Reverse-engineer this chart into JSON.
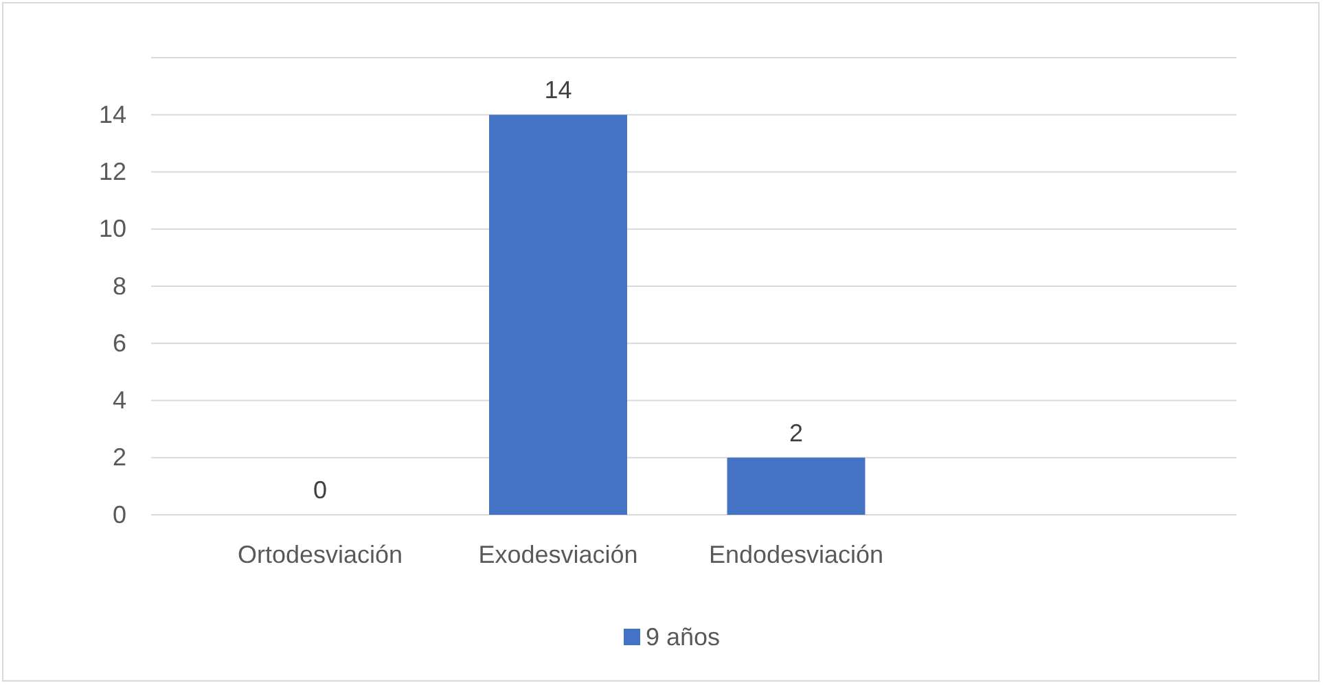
{
  "chart_data": {
    "type": "bar",
    "categories": [
      "Ortodesviación",
      "Exodesviación",
      "Endodesviación"
    ],
    "series": [
      {
        "name": "9 años",
        "color": "#4472c4",
        "values": [
          0,
          14,
          2
        ]
      }
    ],
    "ylim": [
      0,
      16
    ],
    "yticks": [
      0,
      2,
      4,
      6,
      8,
      10,
      12,
      14,
      {
        "value": 16,
        "label": null
      }
    ],
    "grid": "y",
    "legend": "bottom",
    "data_labels": true
  }
}
